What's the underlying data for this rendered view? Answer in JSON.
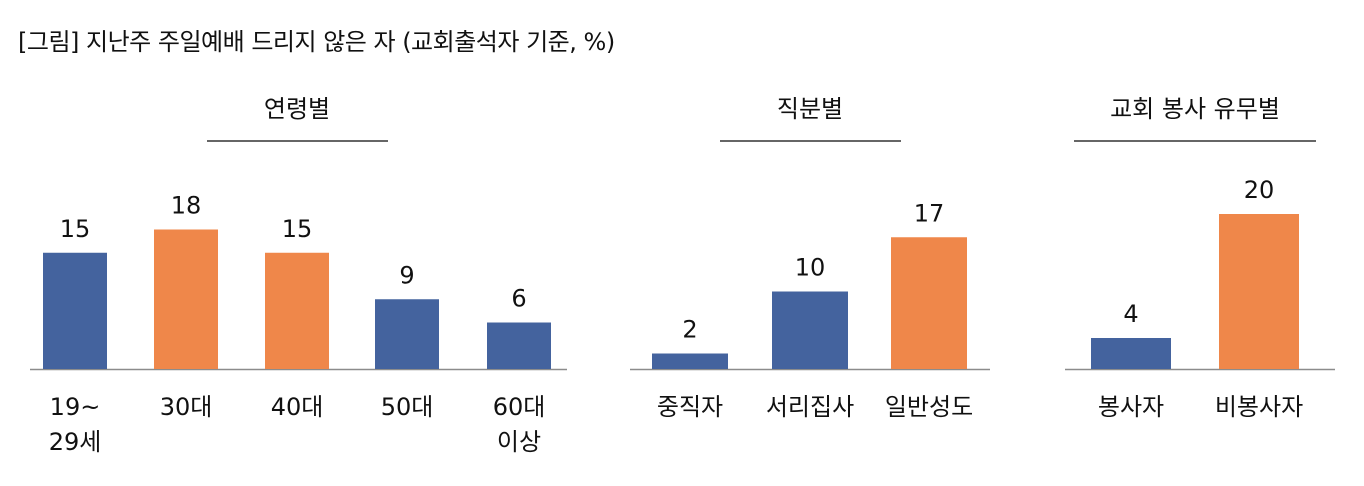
{
  "title": "[그림] 지난주 주일예배 드리지 않은 자 (교회출석자 기준, %)",
  "colors": {
    "blue": "#44639e",
    "orange": "#ef874a",
    "axis": "#8c8c8c",
    "rule": "#333333"
  },
  "chart_data": [
    {
      "type": "bar",
      "title": "연령별",
      "categories": [
        [
          "19~",
          "29세"
        ],
        [
          "30대"
        ],
        [
          "40대"
        ],
        [
          "50대"
        ],
        [
          "60대",
          "이상"
        ]
      ],
      "values": [
        15,
        18,
        15,
        9,
        6
      ],
      "colors": [
        "blue",
        "orange",
        "orange",
        "blue",
        "blue"
      ]
    },
    {
      "type": "bar",
      "title": "직분별",
      "categories": [
        [
          "중직자"
        ],
        [
          "서리집사"
        ],
        [
          "일반성도"
        ]
      ],
      "values": [
        2,
        10,
        17
      ],
      "colors": [
        "blue",
        "blue",
        "orange"
      ]
    },
    {
      "type": "bar",
      "title": "교회 봉사 유무별",
      "categories": [
        [
          "봉사자"
        ],
        [
          "비봉사자"
        ]
      ],
      "values": [
        4,
        20
      ],
      "colors": [
        "blue",
        "orange"
      ]
    }
  ]
}
